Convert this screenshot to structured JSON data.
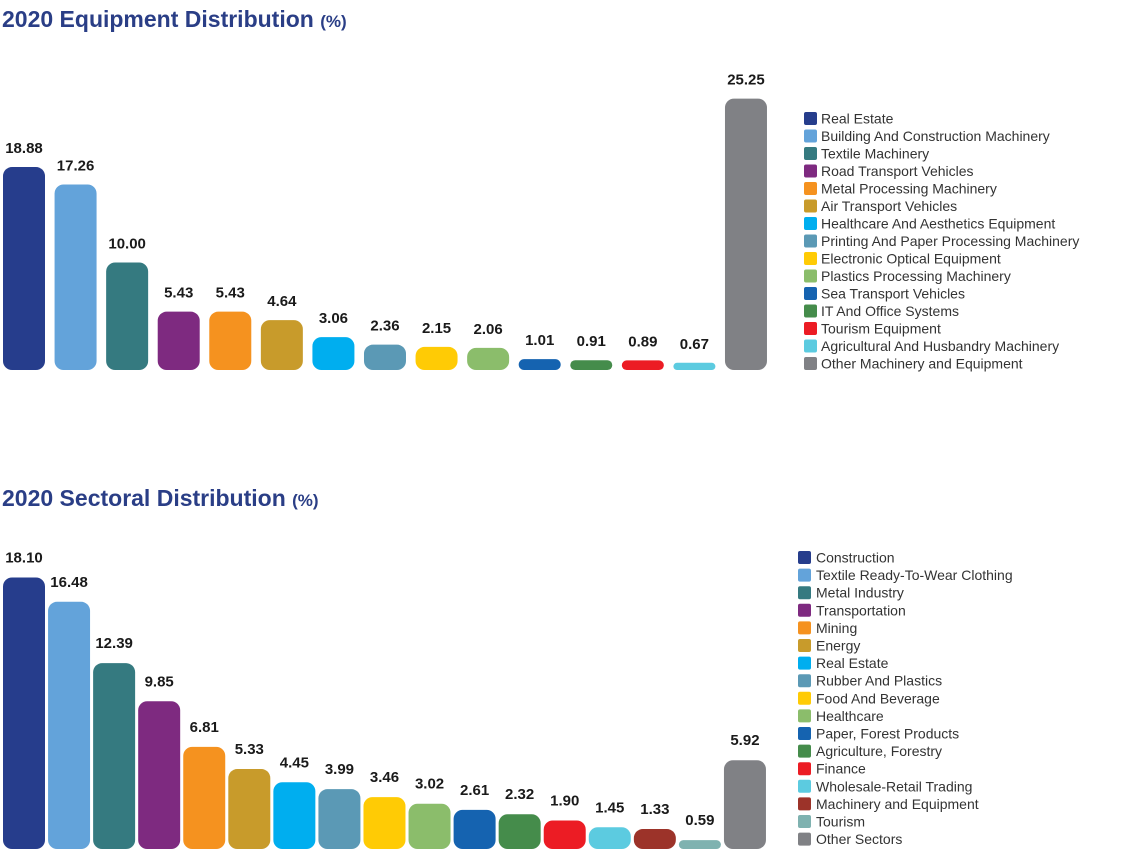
{
  "chart_data": [
    {
      "type": "bar",
      "title": "2020 Equipment Distribution",
      "title_unit": "(%)",
      "categories": [
        "Real Estate",
        "Building And Construction Machinery",
        "Textile Machinery",
        "Road Transport Vehicles",
        "Metal Processing Machinery",
        "Air Transport Vehicles",
        "Healthcare And Aesthetics Equipment",
        "Printing And Paper Processing Machinery",
        "Electronic Optical Equipment",
        "Plastics Processing Machinery",
        "Sea Transport Vehicles",
        "IT And Office Systems",
        "Tourism Equipment",
        "Agricultural And Husbandry Machinery",
        "Other Machinery and Equipment"
      ],
      "values": [
        18.88,
        17.26,
        10.0,
        5.43,
        5.43,
        4.64,
        3.06,
        2.36,
        2.15,
        2.06,
        1.01,
        0.91,
        0.89,
        0.67,
        25.25
      ],
      "labels": [
        "18.88",
        "17.26",
        "10.00",
        "5.43",
        "5.43",
        "4.64",
        "3.06",
        "2.36",
        "2.15",
        "2.06",
        "1.01",
        "0.91",
        "0.89",
        "0.67",
        "25.25"
      ],
      "colors": [
        "#263d8c",
        "#63a3da",
        "#357a80",
        "#7e2a80",
        "#f5921f",
        "#c89b2b",
        "#00aeef",
        "#5b99b5",
        "#ffcb05",
        "#8bbd6b",
        "#1563b0",
        "#458c4b",
        "#ec1c24",
        "#5ccbe0",
        "#808185"
      ],
      "legend": "right",
      "grid": false
    },
    {
      "type": "bar",
      "title": "2020 Sectoral Distribution",
      "title_unit": "(%)",
      "categories": [
        "Construction",
        "Textile Ready-To-Wear Clothing",
        "Metal Industry",
        "Transportation",
        "Mining",
        "Energy",
        "Real Estate",
        "Rubber And Plastics",
        "Food And Beverage",
        "Healthcare",
        "Paper, Forest Products",
        "Agriculture, Forestry",
        "Finance",
        "Wholesale-Retail Trading",
        "Machinery and Equipment",
        "Tourism",
        "Other Sectors"
      ],
      "values": [
        18.1,
        16.48,
        12.39,
        9.85,
        6.81,
        5.33,
        4.45,
        3.99,
        3.46,
        3.02,
        2.61,
        2.32,
        1.9,
        1.45,
        1.33,
        0.59,
        5.92
      ],
      "labels": [
        "18.10",
        "16.48",
        "12.39",
        "9.85",
        "6.81",
        "5.33",
        "4.45",
        "3.99",
        "3.46",
        "3.02",
        "2.61",
        "2.32",
        "1.90",
        "1.45",
        "1.33",
        "0.59",
        "5.92"
      ],
      "colors": [
        "#263d8c",
        "#63a3da",
        "#357a80",
        "#7e2a80",
        "#f5921f",
        "#c89b2b",
        "#00aeef",
        "#5b99b5",
        "#ffcb05",
        "#8bbd6b",
        "#1563b0",
        "#458c4b",
        "#ec1c24",
        "#5ccbe0",
        "#9c3329",
        "#7fb2b0",
        "#808185"
      ],
      "legend": "right",
      "grid": false
    }
  ]
}
